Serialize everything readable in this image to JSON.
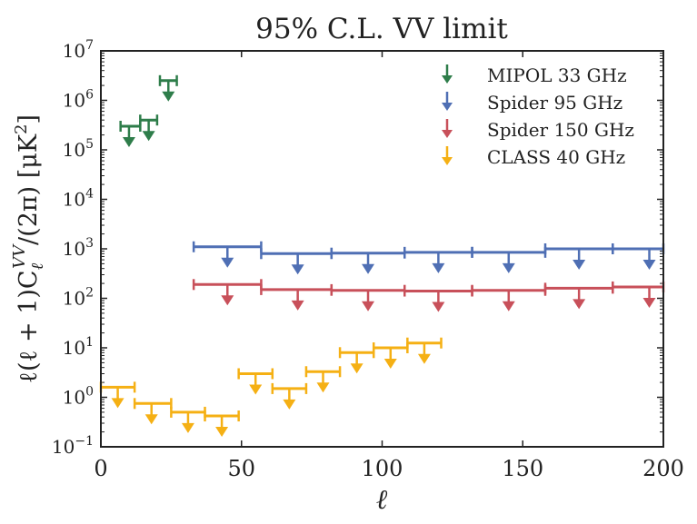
{
  "chart_data": {
    "type": "scatter",
    "subtype": "upper-limit bandpowers (horizontal bin bar with downward arrow)",
    "title": "95% C.L. VV limit",
    "xlabel": "ℓ",
    "ylabel": "ℓ(ℓ + 1)C",
    "ylabel_sub": "ℓ",
    "ylabel_sup": "VV",
    "ylabel_tail": "/(2π)  [μK",
    "ylabel_unit_sup": "2",
    "ylabel_close": "]",
    "xlim": [
      0,
      200
    ],
    "ylim": [
      0.1,
      10000000
    ],
    "yscale": "log",
    "xticks": [
      0,
      50,
      100,
      150,
      200
    ],
    "xtick_labels": [
      "0",
      "50",
      "100",
      "150",
      "200"
    ],
    "yticks": [
      0.1,
      1,
      10,
      100,
      1000,
      10000,
      100000,
      1000000,
      10000000
    ],
    "ytick_labels": [
      {
        "base": "10",
        "exp": "−1"
      },
      {
        "base": "10",
        "exp": "0"
      },
      {
        "base": "10",
        "exp": "1"
      },
      {
        "base": "10",
        "exp": "2"
      },
      {
        "base": "10",
        "exp": "3"
      },
      {
        "base": "10",
        "exp": "4"
      },
      {
        "base": "10",
        "exp": "5"
      },
      {
        "base": "10",
        "exp": "6"
      },
      {
        "base": "10",
        "exp": "7"
      }
    ],
    "legend_position": "top-right",
    "series": [
      {
        "name": "MIPOL 33 GHz",
        "color": "#2e7d4a",
        "points": [
          {
            "lmin": 7,
            "lmax": 14,
            "lcenter": 10,
            "value": 300000
          },
          {
            "lmin": 14,
            "lmax": 20,
            "lcenter": 17,
            "value": 400000
          },
          {
            "lmin": 21,
            "lmax": 27,
            "lcenter": 24,
            "value": 2500000
          }
        ]
      },
      {
        "name": "Spider 95 GHz",
        "color": "#4f6fb4",
        "points": [
          {
            "lmin": 33,
            "lmax": 57,
            "lcenter": 45,
            "value": 1100
          },
          {
            "lmin": 57,
            "lmax": 82,
            "lcenter": 70,
            "value": 800
          },
          {
            "lmin": 82,
            "lmax": 108,
            "lcenter": 95,
            "value": 820
          },
          {
            "lmin": 108,
            "lmax": 132,
            "lcenter": 120,
            "value": 850
          },
          {
            "lmin": 132,
            "lmax": 158,
            "lcenter": 145,
            "value": 850
          },
          {
            "lmin": 158,
            "lmax": 182,
            "lcenter": 170,
            "value": 1000
          },
          {
            "lmin": 182,
            "lmax": 200,
            "lcenter": 195,
            "value": 1000
          }
        ]
      },
      {
        "name": "Spider 150 GHz",
        "color": "#c8505a",
        "points": [
          {
            "lmin": 33,
            "lmax": 57,
            "lcenter": 45,
            "value": 190
          },
          {
            "lmin": 57,
            "lmax": 82,
            "lcenter": 70,
            "value": 150
          },
          {
            "lmin": 82,
            "lmax": 108,
            "lcenter": 95,
            "value": 145
          },
          {
            "lmin": 108,
            "lmax": 132,
            "lcenter": 120,
            "value": 140
          },
          {
            "lmin": 132,
            "lmax": 158,
            "lcenter": 145,
            "value": 145
          },
          {
            "lmin": 158,
            "lmax": 182,
            "lcenter": 170,
            "value": 160
          },
          {
            "lmin": 182,
            "lmax": 200,
            "lcenter": 195,
            "value": 170
          }
        ]
      },
      {
        "name": "CLASS 40 GHz",
        "color": "#f5b014",
        "points": [
          {
            "lmin": 0,
            "lmax": 12,
            "lcenter": 6,
            "value": 1.6
          },
          {
            "lmin": 12,
            "lmax": 25,
            "lcenter": 18,
            "value": 0.75
          },
          {
            "lmin": 25,
            "lmax": 37,
            "lcenter": 31,
            "value": 0.5
          },
          {
            "lmin": 37,
            "lmax": 49,
            "lcenter": 43,
            "value": 0.42
          },
          {
            "lmin": 49,
            "lmax": 61,
            "lcenter": 55,
            "value": 3.0
          },
          {
            "lmin": 61,
            "lmax": 73,
            "lcenter": 67,
            "value": 1.5
          },
          {
            "lmin": 73,
            "lmax": 85,
            "lcenter": 79,
            "value": 3.3
          },
          {
            "lmin": 85,
            "lmax": 97,
            "lcenter": 91,
            "value": 8.0
          },
          {
            "lmin": 97,
            "lmax": 109,
            "lcenter": 103,
            "value": 10.0
          },
          {
            "lmin": 109,
            "lmax": 121,
            "lcenter": 115,
            "value": 12.5
          }
        ]
      }
    ]
  }
}
